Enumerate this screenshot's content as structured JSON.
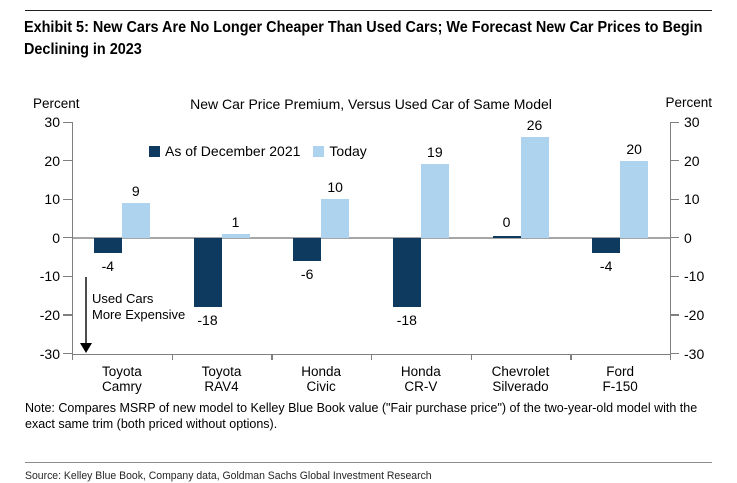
{
  "exhibit": {
    "title_lines": [
      "Exhibit 5: New Cars Are No Longer Cheaper Than Used Cars; We Forecast New Car Prices to Begin",
      "Declining in 2023"
    ]
  },
  "chart_data": {
    "type": "bar",
    "title": "New Car Price Premium, Versus Used Car of Same Model",
    "axis_label_left": "Percent",
    "axis_label_right": "Percent",
    "ylim": [
      -30,
      30
    ],
    "yticks": [
      30,
      20,
      10,
      0,
      -10,
      -20,
      -30
    ],
    "categories": [
      [
        "Toyota",
        "Camry"
      ],
      [
        "Toyota",
        "RAV4"
      ],
      [
        "Honda",
        "Civic"
      ],
      [
        "Honda",
        "CR-V"
      ],
      [
        "Chevrolet",
        "Silverado"
      ],
      [
        "Ford",
        "F-150"
      ]
    ],
    "series": [
      {
        "name": "As of December 2021",
        "color": "#0d3a5e",
        "values": [
          -4,
          -18,
          -6,
          -18,
          0,
          -4
        ]
      },
      {
        "name": "Today",
        "color": "#aed3ee",
        "values": [
          9,
          1,
          10,
          19,
          26,
          20
        ]
      }
    ],
    "annotation": {
      "line1": "Used Cars",
      "line2": "More Expensive"
    },
    "legend_position": "top-inside",
    "grid": false,
    "colors": {
      "axis": "#7f7f7f",
      "zero_line": "#a6a6a6"
    }
  },
  "note": "Note: Compares MSRP of new model to Kelley Blue Book value (\"Fair purchase price\") of the two-year-old model with the exact same trim (both priced without options).",
  "source": "Source: Kelley Blue Book, Company data, Goldman Sachs Global Investment Research"
}
